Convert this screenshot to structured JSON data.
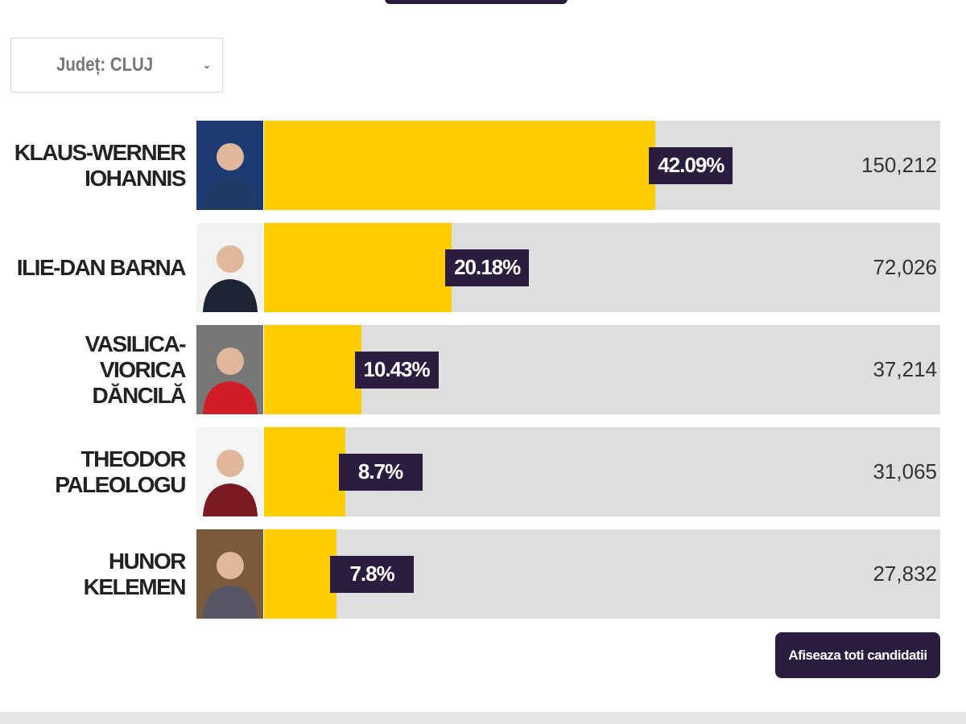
{
  "selector": {
    "label": "Județ: CLUJ"
  },
  "chart_data": {
    "type": "bar",
    "orientation": "horizontal",
    "categories": [
      "KLAUS-WERNER IOHANNIS",
      "ILIE-DAN BARNA",
      "VASILICA-VIORICA DĂNCILĂ",
      "THEODOR PALEOLOGU",
      "HUNOR KELEMEN"
    ],
    "values": [
      42.09,
      20.18,
      10.43,
      8.7,
      7.8
    ],
    "value_labels": [
      "42.09%",
      "20.18%",
      "10.43%",
      "8.7%",
      "7.8%"
    ],
    "votes": [
      "150,212",
      "72,026",
      "37,214",
      "31,065",
      "27,832"
    ],
    "xlim": [
      0,
      72.7
    ],
    "color": "#ffcc00",
    "track_color": "#dedede",
    "label_color": "#2b1d3f"
  },
  "button": {
    "label": "Afiseaza toti candidatii"
  }
}
